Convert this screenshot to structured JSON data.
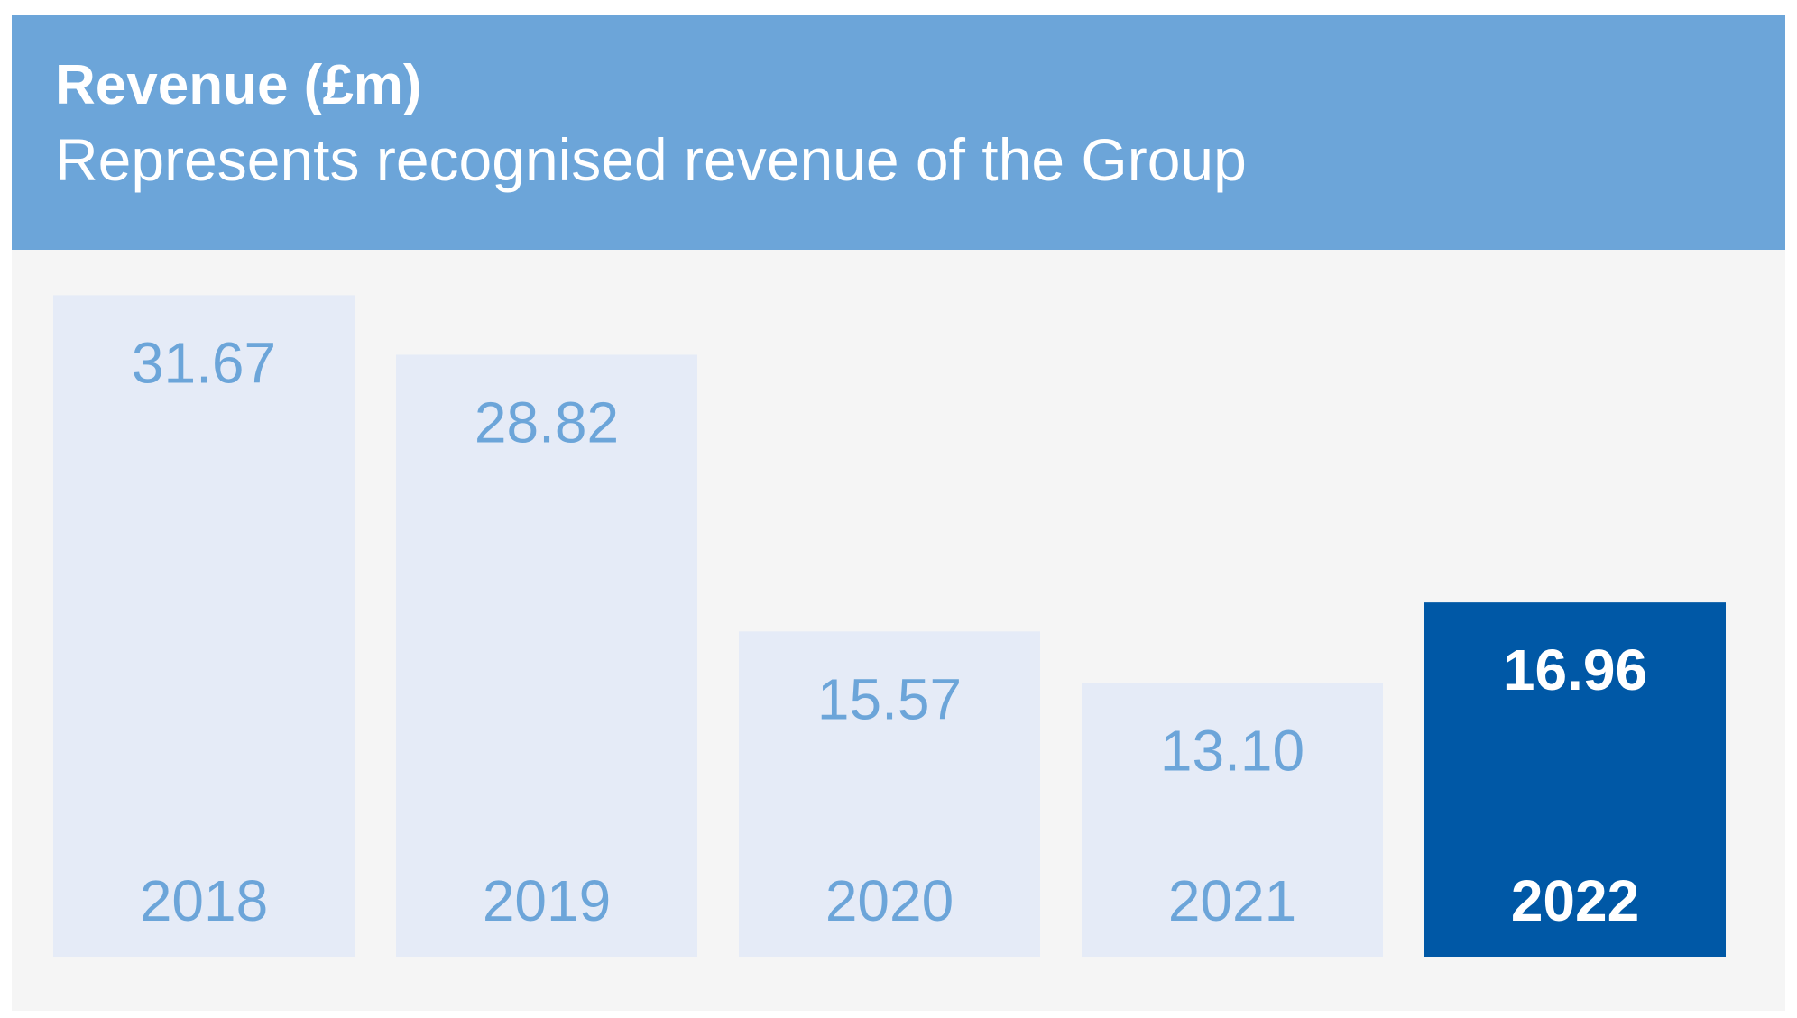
{
  "title": "Revenue (£m)",
  "subtitle": "Represents recognised revenue of the Group",
  "colors": {
    "header_bg": "#6ca5d9",
    "panel_bg": "#f5f5f5",
    "bar_default": "#e5ebf7",
    "bar_highlight": "#0058a6",
    "text_default": "#6ca5d9",
    "text_highlight": "#ffffff"
  },
  "chart_data": {
    "type": "bar",
    "title": "Revenue (£m)",
    "subtitle": "Represents recognised revenue of the Group",
    "xlabel": "",
    "ylabel": "",
    "categories": [
      "2018",
      "2019",
      "2020",
      "2021",
      "2022"
    ],
    "values": [
      31.67,
      28.82,
      15.57,
      13.1,
      16.96
    ],
    "value_labels": [
      "31.67",
      "28.82",
      "15.57",
      "13.10",
      "16.96"
    ],
    "highlighted": [
      false,
      false,
      false,
      false,
      true
    ],
    "ylim": [
      0,
      33.5
    ],
    "grid": false,
    "legend": "none"
  }
}
